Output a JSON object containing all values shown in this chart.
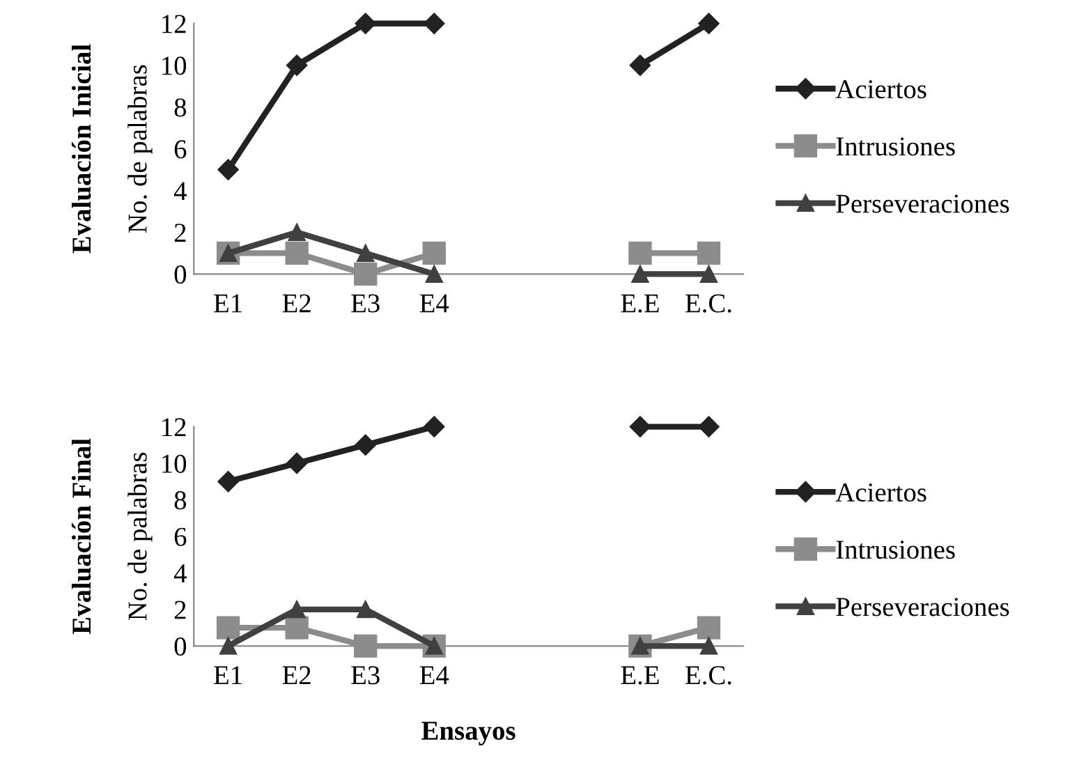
{
  "chart_data": [
    {
      "type": "line",
      "title": "Evaluación Inicial",
      "ylabel": "No. de palabras",
      "categories": [
        "E1",
        "E2",
        "E3",
        "E4",
        null,
        null,
        "E.E",
        "E.C."
      ],
      "series": [
        {
          "name": "Aciertos",
          "color": "#222222",
          "marker": "diamond",
          "values": [
            5,
            10,
            12,
            12,
            null,
            null,
            10,
            12
          ]
        },
        {
          "name": "Intrusiones",
          "color": "#8c8c8c",
          "marker": "square",
          "values": [
            1,
            1,
            0,
            1,
            null,
            null,
            1,
            1
          ]
        },
        {
          "name": "Perseveraciones",
          "color": "#404040",
          "marker": "triangle",
          "values": [
            1,
            2,
            1,
            0,
            null,
            null,
            0,
            0
          ]
        }
      ],
      "ylim": [
        0,
        12
      ],
      "yticks": [
        0,
        2,
        4,
        6,
        8,
        10,
        12
      ],
      "grid": false,
      "legend": "right"
    },
    {
      "type": "line",
      "title": "Evaluación Final",
      "ylabel": "No. de palabras",
      "xlabel": "Ensayos",
      "categories": [
        "E1",
        "E2",
        "E3",
        "E4",
        null,
        null,
        "E.E",
        "E.C."
      ],
      "series": [
        {
          "name": "Aciertos",
          "color": "#222222",
          "marker": "diamond",
          "values": [
            9,
            10,
            11,
            12,
            null,
            null,
            12,
            12
          ]
        },
        {
          "name": "Intrusiones",
          "color": "#8c8c8c",
          "marker": "square",
          "values": [
            1,
            1,
            0,
            0,
            null,
            null,
            0,
            1
          ]
        },
        {
          "name": "Perseveraciones",
          "color": "#404040",
          "marker": "triangle",
          "values": [
            0,
            2,
            2,
            0,
            null,
            null,
            0,
            0
          ]
        }
      ],
      "ylim": [
        0,
        12
      ],
      "yticks": [
        0,
        2,
        4,
        6,
        8,
        10,
        12
      ],
      "grid": false,
      "legend": "bottom right"
    }
  ]
}
